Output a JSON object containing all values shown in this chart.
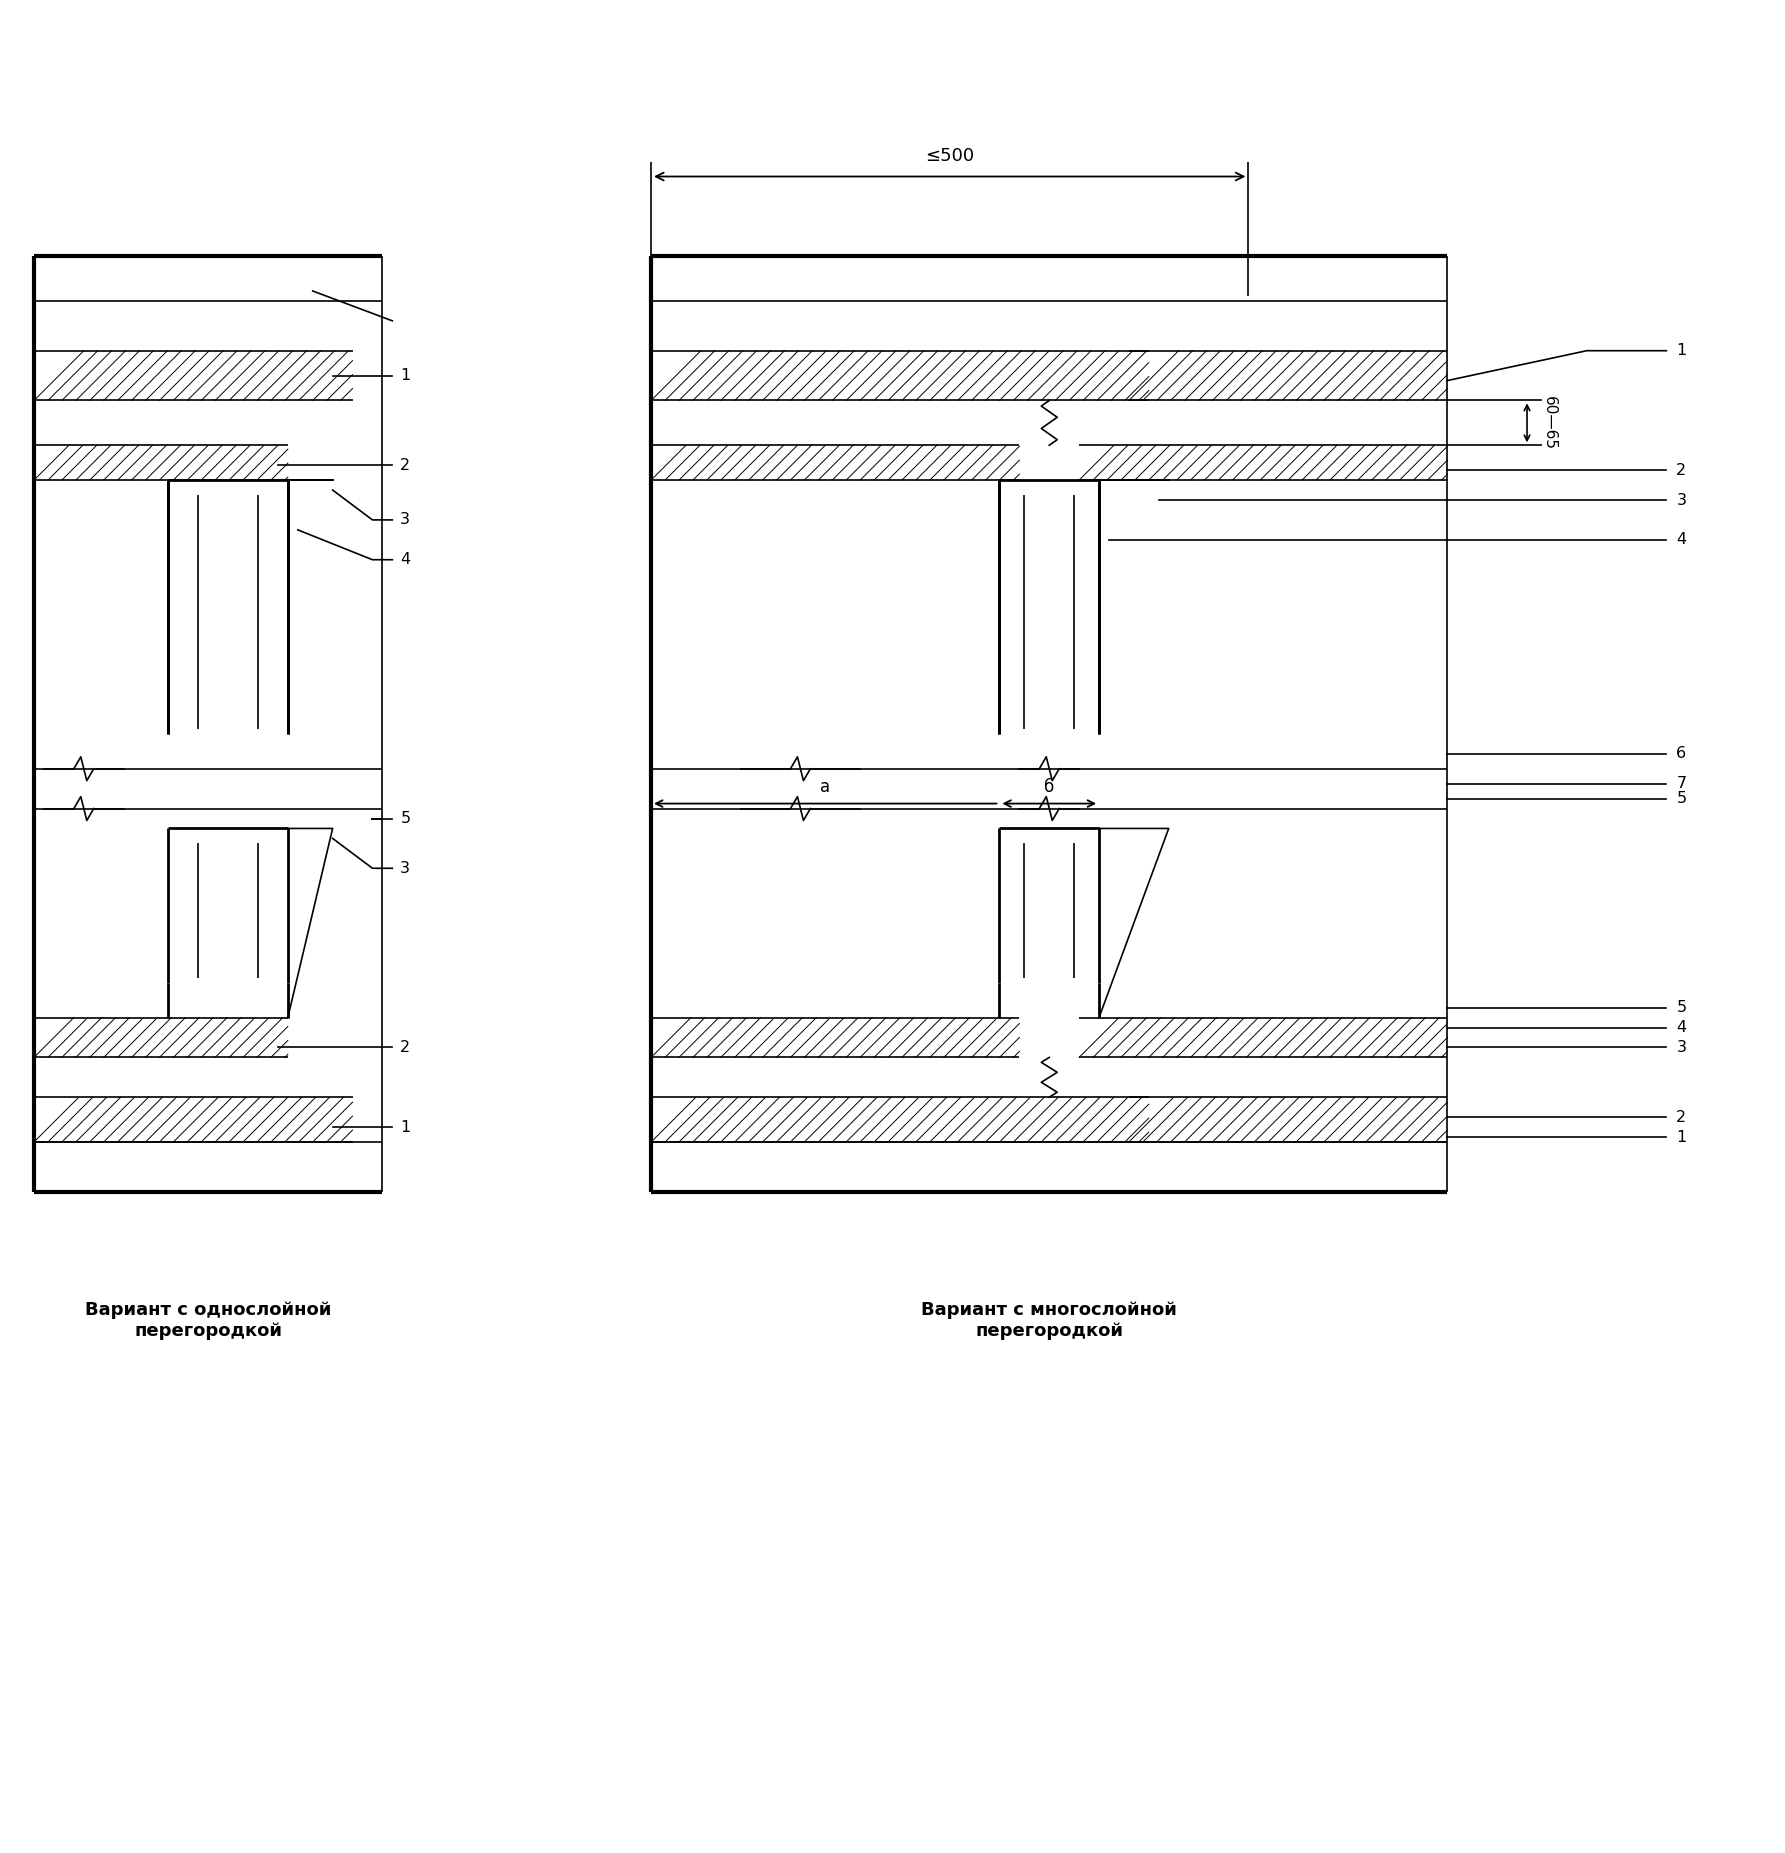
{
  "title_left": "Вариант с однослойной\nперегородкой",
  "title_right": "Вариант с многослойной\nперегородкой",
  "dim_label": "≤500",
  "dim_60_65": "60—65",
  "label_a": "а",
  "label_b": "б",
  "bg_color": "#ffffff",
  "line_color": "#000000"
}
